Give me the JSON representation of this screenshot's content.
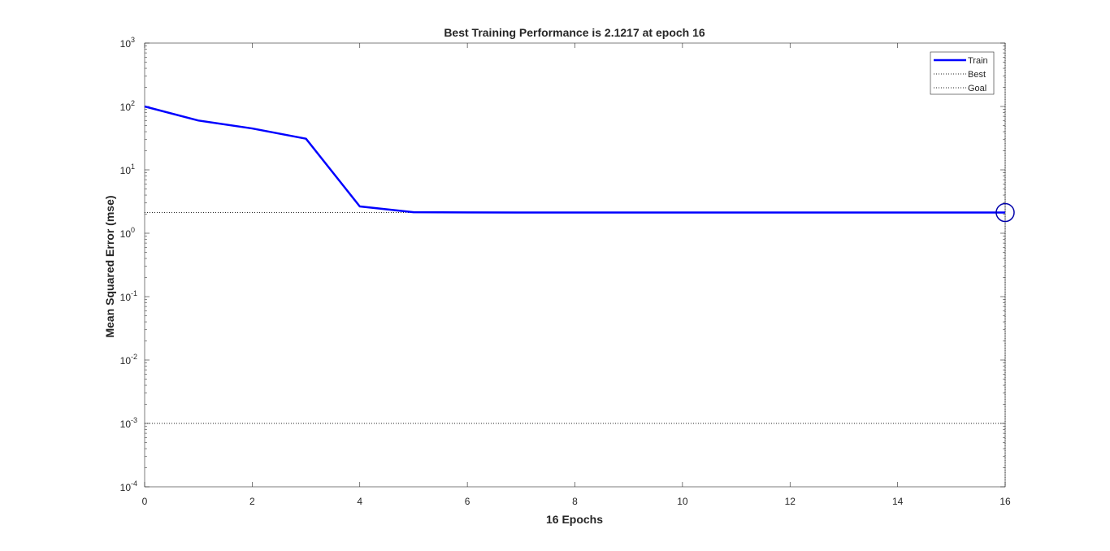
{
  "chart_data": {
    "type": "line",
    "title": "Best Training Performance is 2.1217 at epoch 16",
    "xlabel": "16 Epochs",
    "ylabel": "Mean Squared Error  (mse)",
    "xlim": [
      0,
      16
    ],
    "ylim": [
      0.0001,
      1000
    ],
    "yscale": "log",
    "grid": false,
    "legend_position": "top-right",
    "x_ticks": [
      {
        "value": 0,
        "label": "0"
      },
      {
        "value": 2,
        "label": "2"
      },
      {
        "value": 4,
        "label": "4"
      },
      {
        "value": 6,
        "label": "6"
      },
      {
        "value": 8,
        "label": "8"
      },
      {
        "value": 10,
        "label": "10"
      },
      {
        "value": 12,
        "label": "12"
      },
      {
        "value": 14,
        "label": "14"
      },
      {
        "value": 16,
        "label": "16"
      }
    ],
    "y_ticks": [
      {
        "value": 0.0001,
        "base": "10",
        "exp": "-4"
      },
      {
        "value": 0.001,
        "base": "10",
        "exp": "-3"
      },
      {
        "value": 0.01,
        "base": "10",
        "exp": "-2"
      },
      {
        "value": 0.1,
        "base": "10",
        "exp": "-1"
      },
      {
        "value": 1,
        "base": "10",
        "exp": "0"
      },
      {
        "value": 10,
        "base": "10",
        "exp": "1"
      },
      {
        "value": 100,
        "base": "10",
        "exp": "2"
      },
      {
        "value": 1000,
        "base": "10",
        "exp": "3"
      }
    ],
    "series": [
      {
        "name": "Train",
        "color": "#0000ff",
        "style": "solid",
        "x": [
          0,
          1,
          2,
          3,
          4,
          5,
          6,
          7,
          8,
          9,
          10,
          11,
          12,
          13,
          14,
          15,
          16
        ],
        "y": [
          100,
          60,
          45,
          31,
          2.65,
          2.15,
          2.13,
          2.125,
          2.124,
          2.123,
          2.123,
          2.122,
          2.122,
          2.122,
          2.122,
          2.122,
          2.1217
        ]
      },
      {
        "name": "Best",
        "color": "#262626",
        "style": "dotted",
        "best_epoch": 16,
        "best_value": 2.1217
      },
      {
        "name": "Goal",
        "color": "#262626",
        "style": "dotted",
        "value": 0.001
      }
    ]
  }
}
